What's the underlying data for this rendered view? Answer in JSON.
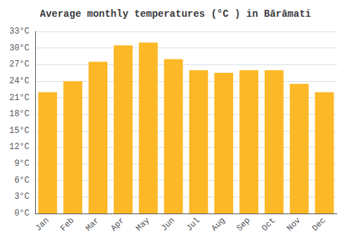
{
  "chart_data": {
    "type": "bar",
    "title": "Average monthly temperatures (°C ) in Bārāmati",
    "categories": [
      "Jan",
      "Feb",
      "Mar",
      "Apr",
      "May",
      "Jun",
      "Jul",
      "Aug",
      "Sep",
      "Oct",
      "Nov",
      "Dec"
    ],
    "values": [
      22.0,
      24.0,
      27.5,
      30.5,
      31.0,
      28.0,
      26.0,
      25.5,
      26.0,
      26.0,
      23.5,
      22.0
    ],
    "color": "#FDB827",
    "ylim": [
      0,
      33
    ],
    "yticks": [
      {
        "value": 0,
        "label": "0°C"
      },
      {
        "value": 3,
        "label": "3°C"
      },
      {
        "value": 6,
        "label": "6°C"
      },
      {
        "value": 9,
        "label": "9°C"
      },
      {
        "value": 12,
        "label": "12°C"
      },
      {
        "value": 15,
        "label": "15°C"
      },
      {
        "value": 18,
        "label": "18°C"
      },
      {
        "value": 21,
        "label": "21°C"
      },
      {
        "value": 24,
        "label": "24°C"
      },
      {
        "value": 27,
        "label": "27°C"
      },
      {
        "value": 30,
        "label": "30°C"
      },
      {
        "value": 33,
        "label": "33°C"
      }
    ],
    "grid": true
  }
}
